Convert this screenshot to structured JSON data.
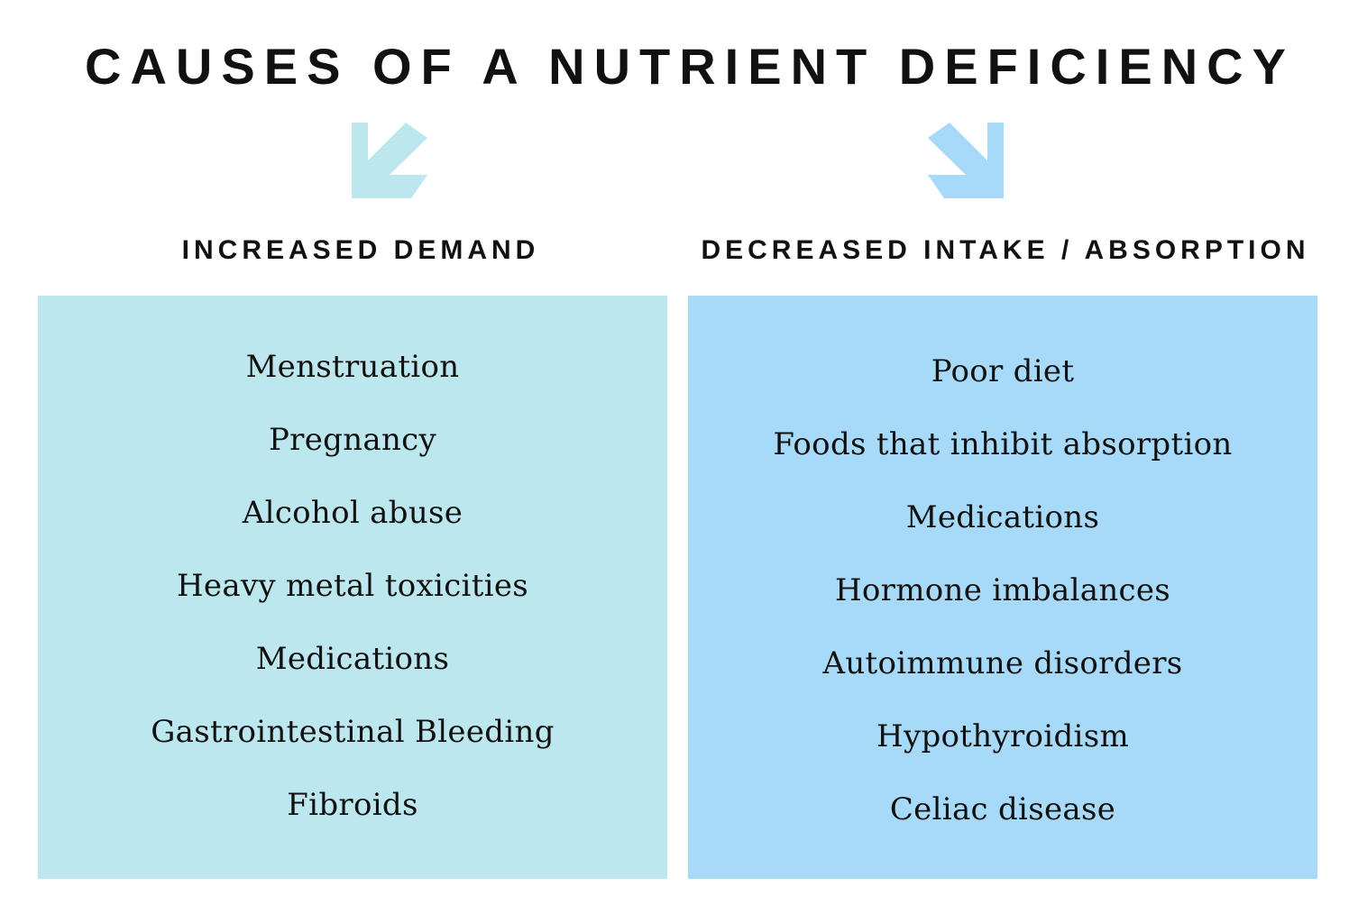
{
  "title": "CAUSES OF A NUTRIENT DEFICIENCY",
  "colors": {
    "left_panel": "#bde7ee",
    "right_panel": "#a7daf8",
    "left_arrow": "#bde7ee",
    "right_arrow": "#a7daf8",
    "text": "#111111"
  },
  "left": {
    "arrow_icon": "arrow-down-left-icon",
    "heading": "INCREASED DEMAND",
    "items": [
      "Menstruation",
      "Pregnancy",
      "Alcohol abuse",
      "Heavy metal toxicities",
      "Medications",
      "Gastrointestinal Bleeding",
      "Fibroids"
    ]
  },
  "right": {
    "arrow_icon": "arrow-down-right-icon",
    "heading": "DECREASED INTAKE / ABSORPTION",
    "items": [
      "Poor diet",
      "Foods that inhibit absorption",
      "Medications",
      "Hormone imbalances",
      "Autoimmune disorders",
      "Hypothyroidism",
      "Celiac disease"
    ]
  }
}
